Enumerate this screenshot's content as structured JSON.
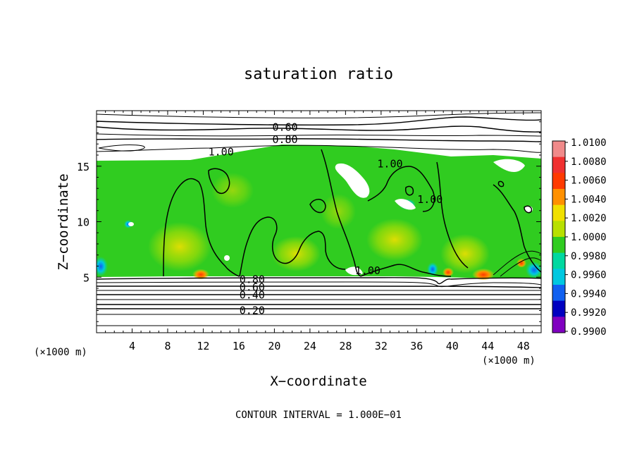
{
  "chart_data": {
    "type": "heatmap",
    "title": "saturation ratio",
    "xlabel": "X−coordinate",
    "ylabel": "Z−coordinate",
    "x_unit_left": "(×1000 m)",
    "x_unit_right": "(×1000 m)",
    "footer": "CONTOUR INTERVAL = 1.000E−01",
    "xlim": [
      0,
      50
    ],
    "ylim": [
      0,
      20
    ],
    "x_ticks": [
      4,
      8,
      12,
      16,
      20,
      24,
      28,
      32,
      36,
      40,
      44,
      48
    ],
    "y_ticks": [
      5,
      10,
      15
    ],
    "colorbar": {
      "labels": [
        "1.0100",
        "1.0080",
        "1.0060",
        "1.0040",
        "1.0020",
        "1.0000",
        "0.9980",
        "0.9960",
        "0.9940",
        "0.9920",
        "0.9900"
      ],
      "colors": [
        "#f08a8a",
        "#f03030",
        "#ff3a00",
        "#ff9000",
        "#f0e000",
        "#b8e000",
        "#30cc20",
        "#00d8a0",
        "#00c8e0",
        "#1060f0",
        "#0000c0",
        "#8000c0"
      ]
    },
    "contour_labels": [
      {
        "text": "0.60",
        "x": 21.2,
        "y": 18.5
      },
      {
        "text": "0.80",
        "x": 21.2,
        "y": 17.4
      },
      {
        "text": "1.00",
        "x": 14.0,
        "y": 16.3
      },
      {
        "text": "1.00",
        "x": 33.0,
        "y": 15.2
      },
      {
        "text": "1.00",
        "x": 37.5,
        "y": 12.0
      },
      {
        "text": "1.00",
        "x": 30.5,
        "y": 5.6
      },
      {
        "text": "0.80",
        "x": 17.5,
        "y": 4.8
      },
      {
        "text": "0.60",
        "x": 17.5,
        "y": 4.1
      },
      {
        "text": "0.40",
        "x": 17.5,
        "y": 3.4
      },
      {
        "text": "0.20",
        "x": 17.5,
        "y": 2.0
      }
    ]
  }
}
